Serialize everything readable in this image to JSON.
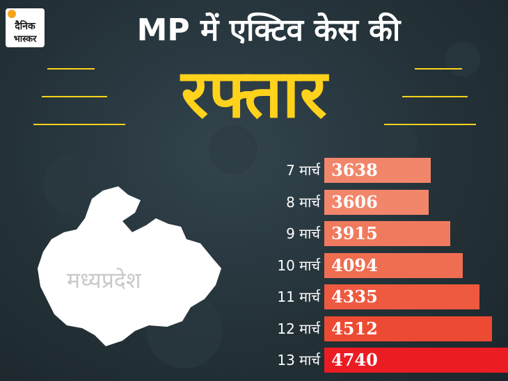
{
  "branding": {
    "logo_line1": "दैनिक",
    "logo_line2": "भास्कर"
  },
  "header": {
    "title_top": "MP में एक्टिव केस की",
    "title_main": "रफ्तार"
  },
  "map": {
    "label": "मध्यप्रदेश"
  },
  "chart_data": {
    "type": "bar",
    "orientation": "horizontal",
    "categories": [
      "7 मार्च",
      "8 मार्च",
      "9 मार्च",
      "10 मार्च",
      "11 मार्च",
      "12 मार्च",
      "13 मार्च"
    ],
    "values": [
      3638,
      3606,
      3915,
      4094,
      4335,
      4512,
      4740
    ],
    "value_labels": [
      "3638",
      "3606",
      "3915",
      "4094",
      "4335",
      "4512",
      "4740"
    ],
    "colors": [
      "#f2866a",
      "#f2866a",
      "#f07a5e",
      "#ef6e52",
      "#ee5a40",
      "#ed4a33",
      "#ec1c24"
    ],
    "xlim": [
      0,
      4740
    ],
    "title": "",
    "xlabel": "",
    "ylabel": ""
  },
  "colors": {
    "accent": "#ffd21c",
    "background": "#243238"
  }
}
